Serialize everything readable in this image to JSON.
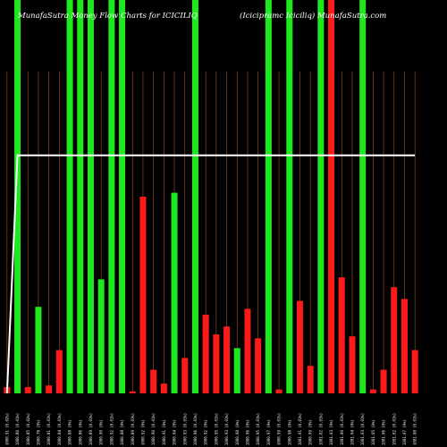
{
  "title_left": "MunafaSutra  Money Flow  Charts for ICICILIQ",
  "title_right": "(Icicipramc Iciciliq) MunafaSutra.com",
  "colors": {
    "background": "#000000",
    "up": "#1ee81e",
    "down": "#ff1a1a",
    "grid": "#a0522d",
    "line": "#ffffff"
  },
  "chart_data": {
    "type": "bar",
    "title": "MunafaSutra  Money Flow  Charts for ICICILIQ",
    "subtitle": "(Icicipramc Iciciliq) MunafaSutra.com",
    "grid": true,
    "ylim": [
      0,
      100
    ],
    "categories": [
      "1000.91 (0.02%)",
      "1000.80 (0.01%)",
      "1000.85 (0.02%)",
      "1000.78 (0%)",
      "1000.81 (0.01%)",
      "1000.84 (0.01%)",
      "1000.88 (0%)",
      "1000.86 (0%)",
      "1000.89 (0.01%)",
      "1000.90 (0%)",
      "1000.92 (0.01%)",
      "1000.88 (0%)",
      "1000.89 (0.01%)",
      "1000.92 (0%)",
      "1000.90 (0.01%)",
      "1000.91 (0%)",
      "1000.94 (0%)",
      "1000.93 (0.01%)",
      "1000.96 (0.01%)",
      "1000.92 (0%)",
      "1000.95 (0.01%)",
      "1000.93 (0.01%)",
      "1000.98 (0%)",
      "1000.96 (0%)",
      "1000.95 (0.01%)",
      "1000.97 (0%)",
      "1000.99 (0.01%)",
      "1000.98 (0%)",
      "1001.01 (0.01%)",
      "1000.99 (0%)",
      "1001.02 (0.01%)",
      "1001.03 (0%)",
      "1001.00 (0.01%)",
      "1001.04 (0%)",
      "1001.03 (0.01%)",
      "1001.05 (0%)",
      "1001.06 (0%)",
      "1001.02 (0.01%)",
      "1001.07 (0%)",
      "1001.08 (0.01%)"
    ],
    "series": [
      {
        "values": [
          1.6,
          100,
          1.6,
          22,
          2,
          11,
          100,
          100,
          100,
          29,
          100,
          100,
          0.5,
          50,
          6,
          2.5,
          51,
          9,
          100,
          20,
          15,
          17,
          11.5,
          21.5,
          14,
          100,
          1,
          100,
          23.5,
          7,
          100,
          100,
          29.5,
          14.5,
          100,
          1,
          6,
          27,
          24,
          11
        ],
        "directions": [
          "down",
          "up",
          "down",
          "up",
          "down",
          "down",
          "up",
          "up",
          "up",
          "up",
          "up",
          "up",
          "down",
          "down",
          "down",
          "down",
          "up",
          "down",
          "up",
          "down",
          "down",
          "down",
          "up",
          "down",
          "down",
          "up",
          "down",
          "up",
          "down",
          "down",
          "up",
          "down",
          "down",
          "down",
          "up",
          "down",
          "down",
          "down",
          "down",
          "down"
        ]
      },
      {
        "values": [
          0,
          60.5,
          60.5,
          60.5,
          60.5,
          60.5,
          60.5,
          60.5,
          60.5,
          60.5,
          60.5,
          60.5,
          60.5,
          60.5,
          60.5,
          60.5,
          60.5,
          60.5,
          60.5,
          60.5,
          60.5,
          60.5,
          60.5,
          60.5,
          60.5,
          60.5,
          60.5,
          60.5,
          60.5,
          60.5,
          60.5,
          60.5,
          60.5,
          60.5,
          60.5,
          60.5,
          60.5,
          60.5,
          60.5,
          60.5
        ]
      }
    ]
  }
}
